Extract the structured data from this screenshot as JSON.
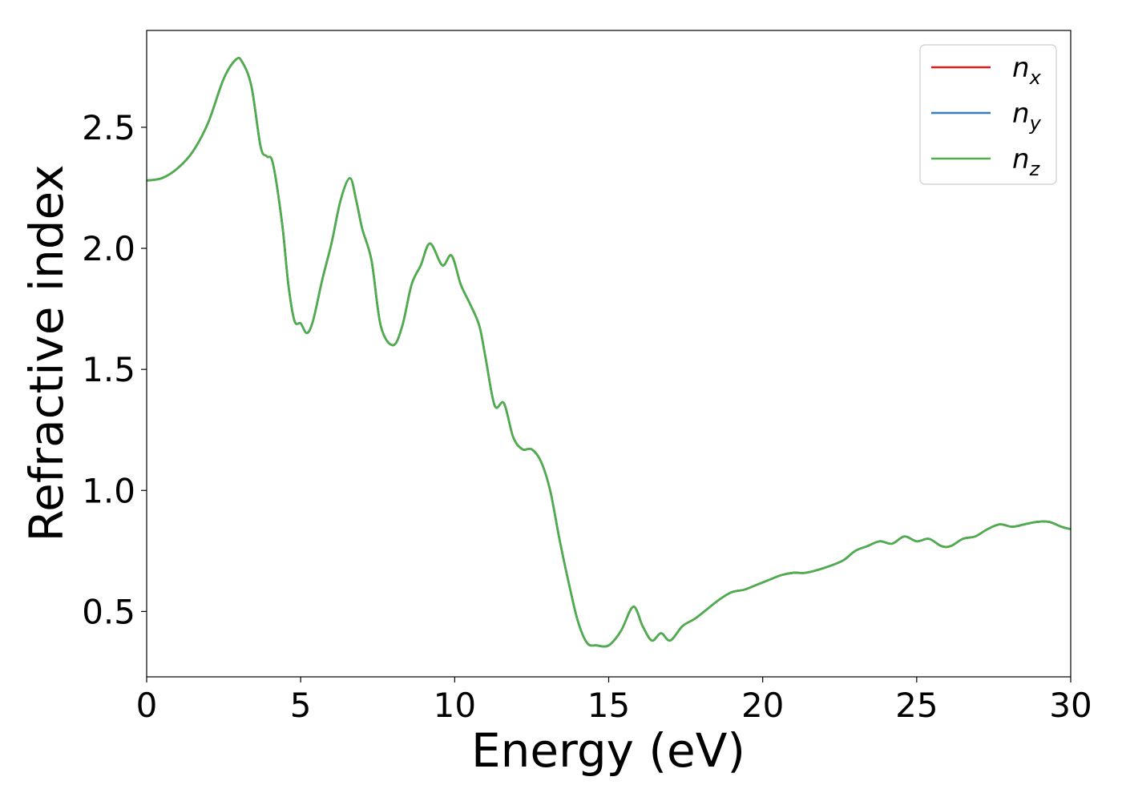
{
  "chart_data": {
    "type": "line",
    "xlabel": "Energy (eV)",
    "ylabel": "Refractive index",
    "xlim": [
      0,
      30
    ],
    "ylim": [
      0.23,
      2.9
    ],
    "xticks": [
      0,
      5,
      10,
      15,
      20,
      25,
      30
    ],
    "xtick_labels": [
      "0",
      "5",
      "10",
      "15",
      "20",
      "25",
      "30"
    ],
    "yticks": [
      0.5,
      1.0,
      1.5,
      2.0,
      2.5
    ],
    "ytick_labels": [
      "0.5",
      "1.0",
      "1.5",
      "2.0",
      "2.5"
    ],
    "grid": false,
    "legend_position": "top-right",
    "series": [
      {
        "name": "n",
        "subscript": "x",
        "color": "#e41a1c",
        "x": [
          0,
          0.5,
          1,
          1.5,
          2,
          2.5,
          2.9,
          3.1,
          3.4,
          3.7,
          3.9,
          4.1,
          4.4,
          4.6,
          4.8,
          5,
          5.2,
          5.4,
          5.7,
          6,
          6.3,
          6.6,
          6.8,
          7,
          7.3,
          7.6,
          8,
          8.3,
          8.6,
          8.9,
          9.2,
          9.6,
          9.9,
          10.2,
          10.5,
          10.8,
          11,
          11.3,
          11.6,
          11.9,
          12.2,
          12.5,
          12.8,
          13.1,
          13.4,
          13.7,
          14,
          14.3,
          14.6,
          15,
          15.4,
          15.8,
          16.1,
          16.4,
          16.7,
          17,
          17.4,
          17.8,
          18.2,
          18.6,
          19,
          19.4,
          19.8,
          20.2,
          20.6,
          21,
          21.4,
          22,
          22.6,
          23,
          23.4,
          23.8,
          24.2,
          24.6,
          25,
          25.4,
          25.8,
          26.1,
          26.5,
          26.9,
          27.3,
          27.7,
          28.1,
          28.5,
          28.9,
          29.3,
          29.7,
          30
        ],
        "values": [
          2.28,
          2.29,
          2.33,
          2.4,
          2.52,
          2.7,
          2.78,
          2.77,
          2.67,
          2.42,
          2.38,
          2.35,
          2.1,
          1.85,
          1.7,
          1.69,
          1.65,
          1.7,
          1.87,
          2.02,
          2.2,
          2.29,
          2.2,
          2.08,
          1.95,
          1.68,
          1.6,
          1.68,
          1.85,
          1.93,
          2.02,
          1.93,
          1.97,
          1.85,
          1.77,
          1.68,
          1.55,
          1.35,
          1.36,
          1.22,
          1.17,
          1.17,
          1.12,
          1.0,
          0.8,
          0.62,
          0.46,
          0.37,
          0.36,
          0.36,
          0.42,
          0.52,
          0.44,
          0.38,
          0.41,
          0.38,
          0.44,
          0.47,
          0.51,
          0.55,
          0.58,
          0.59,
          0.61,
          0.63,
          0.65,
          0.66,
          0.66,
          0.68,
          0.71,
          0.75,
          0.77,
          0.79,
          0.78,
          0.81,
          0.79,
          0.8,
          0.77,
          0.77,
          0.8,
          0.81,
          0.84,
          0.86,
          0.85,
          0.86,
          0.87,
          0.87,
          0.85,
          0.84
        ]
      },
      {
        "name": "n",
        "subscript": "y",
        "color": "#377eb8",
        "x": [
          0,
          0.5,
          1,
          1.5,
          2,
          2.5,
          2.9,
          3.1,
          3.4,
          3.7,
          3.9,
          4.1,
          4.4,
          4.6,
          4.8,
          5,
          5.2,
          5.4,
          5.7,
          6,
          6.3,
          6.6,
          6.8,
          7,
          7.3,
          7.6,
          8,
          8.3,
          8.6,
          8.9,
          9.2,
          9.6,
          9.9,
          10.2,
          10.5,
          10.8,
          11,
          11.3,
          11.6,
          11.9,
          12.2,
          12.5,
          12.8,
          13.1,
          13.4,
          13.7,
          14,
          14.3,
          14.6,
          15,
          15.4,
          15.8,
          16.1,
          16.4,
          16.7,
          17,
          17.4,
          17.8,
          18.2,
          18.6,
          19,
          19.4,
          19.8,
          20.2,
          20.6,
          21,
          21.4,
          22,
          22.6,
          23,
          23.4,
          23.8,
          24.2,
          24.6,
          25,
          25.4,
          25.8,
          26.1,
          26.5,
          26.9,
          27.3,
          27.7,
          28.1,
          28.5,
          28.9,
          29.3,
          29.7,
          30
        ],
        "values": [
          2.28,
          2.29,
          2.33,
          2.4,
          2.52,
          2.7,
          2.78,
          2.77,
          2.67,
          2.42,
          2.38,
          2.35,
          2.1,
          1.85,
          1.7,
          1.69,
          1.65,
          1.7,
          1.87,
          2.02,
          2.2,
          2.29,
          2.2,
          2.08,
          1.95,
          1.68,
          1.6,
          1.68,
          1.85,
          1.93,
          2.02,
          1.93,
          1.97,
          1.85,
          1.77,
          1.68,
          1.55,
          1.35,
          1.36,
          1.22,
          1.17,
          1.17,
          1.12,
          1.0,
          0.8,
          0.62,
          0.46,
          0.37,
          0.36,
          0.36,
          0.42,
          0.52,
          0.44,
          0.38,
          0.41,
          0.38,
          0.44,
          0.47,
          0.51,
          0.55,
          0.58,
          0.59,
          0.61,
          0.63,
          0.65,
          0.66,
          0.66,
          0.68,
          0.71,
          0.75,
          0.77,
          0.79,
          0.78,
          0.81,
          0.79,
          0.8,
          0.77,
          0.77,
          0.8,
          0.81,
          0.84,
          0.86,
          0.85,
          0.86,
          0.87,
          0.87,
          0.85,
          0.84
        ]
      },
      {
        "name": "n",
        "subscript": "z",
        "color": "#4daf4a",
        "x": [
          0,
          0.5,
          1,
          1.5,
          2,
          2.5,
          2.9,
          3.1,
          3.4,
          3.7,
          3.9,
          4.1,
          4.4,
          4.6,
          4.8,
          5,
          5.2,
          5.4,
          5.7,
          6,
          6.3,
          6.6,
          6.8,
          7,
          7.3,
          7.6,
          8,
          8.3,
          8.6,
          8.9,
          9.2,
          9.6,
          9.9,
          10.2,
          10.5,
          10.8,
          11,
          11.3,
          11.6,
          11.9,
          12.2,
          12.5,
          12.8,
          13.1,
          13.4,
          13.7,
          14,
          14.3,
          14.6,
          15,
          15.4,
          15.8,
          16.1,
          16.4,
          16.7,
          17,
          17.4,
          17.8,
          18.2,
          18.6,
          19,
          19.4,
          19.8,
          20.2,
          20.6,
          21,
          21.4,
          22,
          22.6,
          23,
          23.4,
          23.8,
          24.2,
          24.6,
          25,
          25.4,
          25.8,
          26.1,
          26.5,
          26.9,
          27.3,
          27.7,
          28.1,
          28.5,
          28.9,
          29.3,
          29.7,
          30
        ],
        "values": [
          2.28,
          2.29,
          2.33,
          2.4,
          2.52,
          2.7,
          2.78,
          2.77,
          2.67,
          2.42,
          2.38,
          2.35,
          2.1,
          1.85,
          1.7,
          1.69,
          1.65,
          1.7,
          1.87,
          2.02,
          2.2,
          2.29,
          2.2,
          2.08,
          1.95,
          1.68,
          1.6,
          1.68,
          1.85,
          1.93,
          2.02,
          1.93,
          1.97,
          1.85,
          1.77,
          1.68,
          1.55,
          1.35,
          1.36,
          1.22,
          1.17,
          1.17,
          1.12,
          1.0,
          0.8,
          0.62,
          0.46,
          0.37,
          0.36,
          0.36,
          0.42,
          0.52,
          0.44,
          0.38,
          0.41,
          0.38,
          0.44,
          0.47,
          0.51,
          0.55,
          0.58,
          0.59,
          0.61,
          0.63,
          0.65,
          0.66,
          0.66,
          0.68,
          0.71,
          0.75,
          0.77,
          0.79,
          0.78,
          0.81,
          0.79,
          0.8,
          0.77,
          0.77,
          0.8,
          0.81,
          0.84,
          0.86,
          0.85,
          0.86,
          0.87,
          0.87,
          0.85,
          0.84
        ]
      }
    ]
  }
}
